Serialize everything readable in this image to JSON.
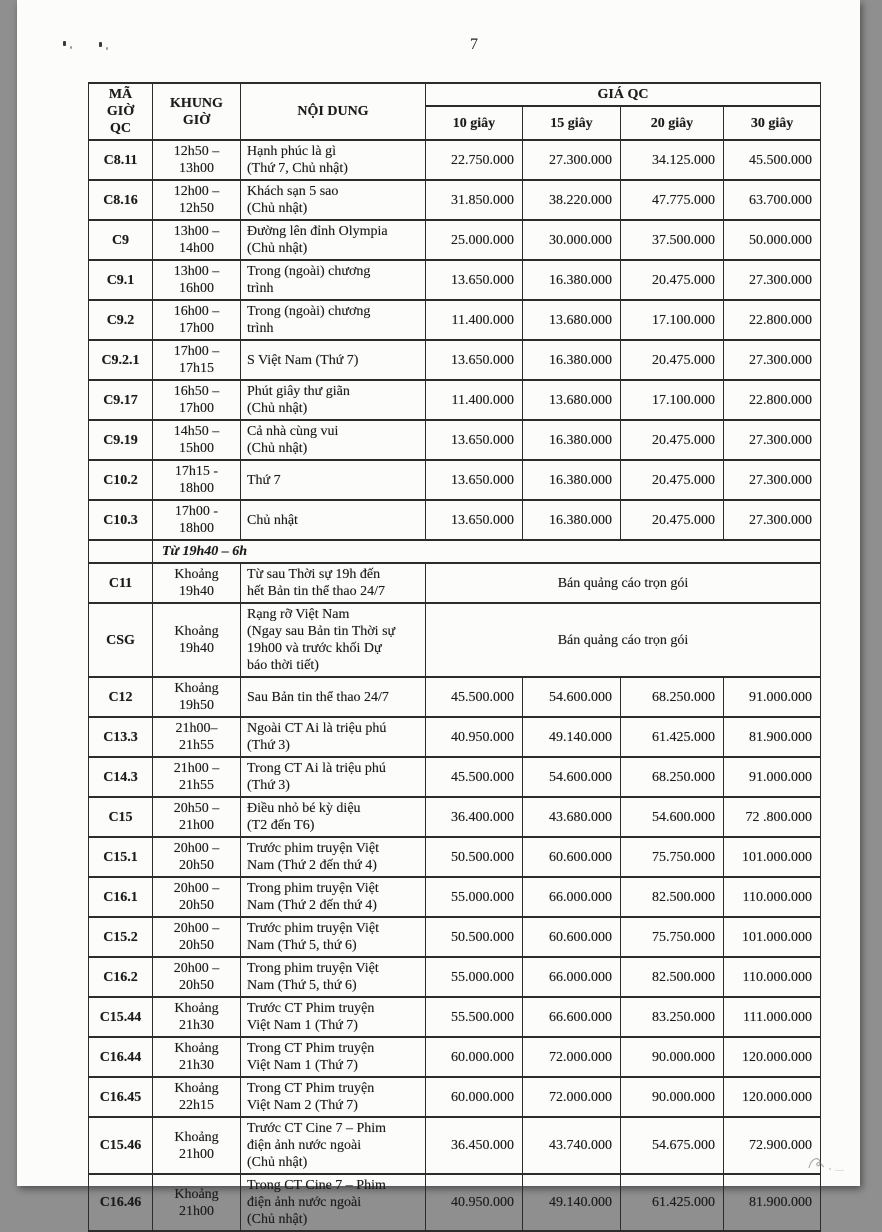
{
  "page": {
    "number": "7"
  },
  "table": {
    "header": {
      "code": "MÃ\nGIỜ\nQC",
      "timeslot": "KHUNG\nGIỜ",
      "content": "NỘI DUNG",
      "price_group": "GIÁ QC",
      "durations": [
        "10 giây",
        "15 giây",
        "20 giây",
        "30 giây"
      ]
    },
    "rows": [
      {
        "code": "C8.11",
        "time": "12h50 –\n13h00",
        "content": "Hạnh phúc là gì\n(Thứ 7, Chủ nhật)",
        "prices": [
          "22.750.000",
          "27.300.000",
          "34.125.000",
          "45.500.000"
        ]
      },
      {
        "code": "C8.16",
        "time": "12h00 –\n12h50",
        "content": "Khách sạn 5 sao\n(Chủ nhật)",
        "prices": [
          "31.850.000",
          "38.220.000",
          "47.775.000",
          "63.700.000"
        ]
      },
      {
        "code": "C9",
        "time": "13h00 –\n14h00",
        "content": "Đường lên đỉnh Olympia\n(Chủ nhật)",
        "prices": [
          "25.000.000",
          "30.000.000",
          "37.500.000",
          "50.000.000"
        ]
      },
      {
        "code": "C9.1",
        "time": "13h00 –\n16h00",
        "content": "Trong (ngoài) chương\ntrình",
        "prices": [
          "13.650.000",
          "16.380.000",
          "20.475.000",
          "27.300.000"
        ]
      },
      {
        "code": "C9.2",
        "time": "16h00 –\n17h00",
        "content": "Trong (ngoài) chương\ntrình",
        "prices": [
          "11.400.000",
          "13.680.000",
          "17.100.000",
          "22.800.000"
        ]
      },
      {
        "code": "C9.2.1",
        "time": "17h00 –\n17h15",
        "content": "S Việt Nam (Thứ 7)",
        "prices": [
          "13.650.000",
          "16.380.000",
          "20.475.000",
          "27.300.000"
        ]
      },
      {
        "code": "C9.17",
        "time": "16h50 –\n17h00",
        "content": "Phút giây thư giãn\n(Chủ nhật)",
        "prices": [
          "11.400.000",
          "13.680.000",
          "17.100.000",
          "22.800.000"
        ]
      },
      {
        "code": "C9.19",
        "time": "14h50 –\n15h00",
        "content": "Cả nhà cùng vui\n(Chủ nhật)",
        "prices": [
          "13.650.000",
          "16.380.000",
          "20.475.000",
          "27.300.000"
        ]
      },
      {
        "code": "C10.2",
        "time": "17h15 -\n18h00",
        "content": "Thứ 7",
        "prices": [
          "13.650.000",
          "16.380.000",
          "20.475.000",
          "27.300.000"
        ]
      },
      {
        "code": "C10.3",
        "time": "17h00 -\n18h00",
        "content": "Chủ nhật",
        "prices": [
          "13.650.000",
          "16.380.000",
          "20.475.000",
          "27.300.000"
        ]
      },
      {
        "type": "section",
        "label": "Từ 19h40 – 6h"
      },
      {
        "code": "C11",
        "time": "Khoảng\n19h40",
        "content": "Từ sau Thời sự 19h đến\nhết Bản tin thể thao 24/7",
        "package": "Bán quảng cáo trọn gói"
      },
      {
        "code": "CSG",
        "time": "Khoảng\n19h40",
        "content": "Rạng rỡ Việt Nam\n(Ngay sau Bản tin Thời sự\n19h00 và trước khối Dự\nbáo thời tiết)",
        "package": "Bán quảng cáo trọn gói"
      },
      {
        "code": "C12",
        "time": "Khoảng\n19h50",
        "content": "Sau Bản tin thể thao 24/7",
        "prices": [
          "45.500.000",
          "54.600.000",
          "68.250.000",
          "91.000.000"
        ]
      },
      {
        "code": "C13.3",
        "time": "21h00–\n21h55",
        "content": "Ngoài CT Ai là triệu phú\n(Thứ 3)",
        "prices": [
          "40.950.000",
          "49.140.000",
          "61.425.000",
          "81.900.000"
        ]
      },
      {
        "code": "C14.3",
        "time": "21h00 –\n21h55",
        "content": "Trong CT Ai là triệu phú\n(Thứ 3)",
        "prices": [
          "45.500.000",
          "54.600.000",
          "68.250.000",
          "91.000.000"
        ]
      },
      {
        "code": "C15",
        "time": "20h50 –\n21h00",
        "content": "Điều nhỏ bé kỳ diệu\n(T2 đến T6)",
        "prices": [
          "36.400.000",
          "43.680.000",
          "54.600.000",
          "72 .800.000"
        ]
      },
      {
        "code": "C15.1",
        "time": "20h00 –\n20h50",
        "content": "Trước phim truyện Việt\nNam (Thứ 2 đến thứ 4)",
        "prices": [
          "50.500.000",
          "60.600.000",
          "75.750.000",
          "101.000.000"
        ]
      },
      {
        "code": "C16.1",
        "time": "20h00 –\n20h50",
        "content": "Trong phim truyện Việt\nNam (Thứ 2 đến thứ 4)",
        "prices": [
          "55.000.000",
          "66.000.000",
          "82.500.000",
          "110.000.000"
        ]
      },
      {
        "code": "C15.2",
        "time": "20h00 –\n20h50",
        "content": "Trước phim truyện Việt\nNam (Thứ 5, thứ 6)",
        "prices": [
          "50.500.000",
          "60.600.000",
          "75.750.000",
          "101.000.000"
        ]
      },
      {
        "code": "C16.2",
        "time": "20h00 –\n20h50",
        "content": "Trong phim truyện Việt\nNam (Thứ 5, thứ 6)",
        "prices": [
          "55.000.000",
          "66.000.000",
          "82.500.000",
          "110.000.000"
        ]
      },
      {
        "code": "C15.44",
        "time": "Khoảng\n21h30",
        "content": "Trước CT Phim truyện\nViệt Nam 1 (Thứ 7)",
        "prices": [
          "55.500.000",
          "66.600.000",
          "83.250.000",
          "111.000.000"
        ]
      },
      {
        "code": "C16.44",
        "time": "Khoảng\n21h30",
        "content": "Trong CT Phim truyện\nViệt Nam 1 (Thứ 7)",
        "prices": [
          "60.000.000",
          "72.000.000",
          "90.000.000",
          "120.000.000"
        ]
      },
      {
        "code": "C16.45",
        "time": "Khoảng\n22h15",
        "content": "Trong CT Phim truyện\nViệt Nam 2 (Thứ 7)",
        "prices": [
          "60.000.000",
          "72.000.000",
          "90.000.000",
          "120.000.000"
        ]
      },
      {
        "code": "C15.46",
        "time": "Khoảng\n21h00",
        "content": "Trước CT Cine 7 – Phim\nđiện ảnh nước ngoài\n(Chủ nhật)",
        "prices": [
          "36.450.000",
          "43.740.000",
          "54.675.000",
          "72.900.000"
        ]
      },
      {
        "code": "C16.46",
        "time": "Khoảng\n21h00",
        "content": "Trong CT Cine 7 – Phim\nđiện ảnh nước ngoài\n(Chủ nhật)",
        "prices": [
          "40.950.000",
          "49.140.000",
          "61.425.000",
          "81.900.000"
        ]
      }
    ]
  }
}
